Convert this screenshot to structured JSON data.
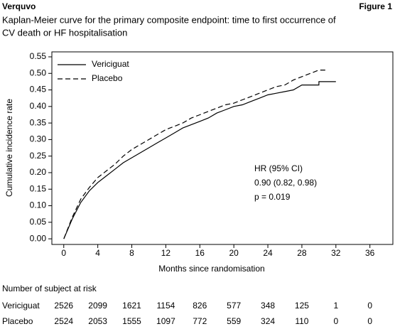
{
  "chart_data": {
    "type": "line",
    "header_left": "Verquvo",
    "header_right": "Figure 1",
    "title": [
      "Kaplan-Meier curve for the primary composite endpoint: time to first occurrence of",
      "CV death or HF hospitalisation"
    ],
    "xlabel": "Months since randomisation",
    "ylabel": "Cumulative incidence rate",
    "xlim": [
      -1.4,
      38.7
    ],
    "ylim": [
      -0.017,
      0.565
    ],
    "xticks": [
      0,
      4,
      8,
      12,
      16,
      20,
      24,
      28,
      32,
      36
    ],
    "yticks": [
      {
        "value": 0,
        "label": "0.00"
      },
      0.05,
      {
        "value": 0.1,
        "label": "0.10"
      },
      0.15,
      {
        "value": 0.2,
        "label": "0.20"
      },
      0.25,
      {
        "value": 0.3,
        "label": "0.30"
      },
      0.35,
      {
        "value": 0.4,
        "label": "0.40"
      },
      0.45,
      {
        "value": 0.5,
        "label": "0.50"
      },
      0.55
    ],
    "grid": false,
    "legend_position": "upper left",
    "series": [
      {
        "name": "Vericiguat",
        "color": "#000000",
        "line_style": "solid",
        "x": [
          0,
          1,
          2,
          3,
          4,
          5,
          6,
          7,
          8,
          9,
          10,
          11,
          12,
          13,
          14,
          15,
          16,
          17,
          18,
          19,
          20,
          21,
          22,
          23,
          24,
          25,
          26,
          27,
          28,
          30,
          30,
          32
        ],
        "values": [
          0,
          0.06,
          0.11,
          0.145,
          0.17,
          0.19,
          0.21,
          0.23,
          0.245,
          0.26,
          0.275,
          0.29,
          0.305,
          0.32,
          0.335,
          0.345,
          0.355,
          0.365,
          0.38,
          0.39,
          0.4,
          0.405,
          0.415,
          0.425,
          0.435,
          0.44,
          0.445,
          0.45,
          0.465,
          0.465,
          0.475,
          0.475
        ]
      },
      {
        "name": "Placebo",
        "color": "#000000",
        "line_style": "dashed",
        "x": [
          0,
          1,
          2,
          3,
          4,
          5,
          6,
          7,
          8,
          9,
          10,
          11,
          12,
          13,
          14,
          15,
          16,
          17,
          18,
          19,
          20,
          21,
          22,
          23,
          24,
          25,
          26,
          27,
          28,
          29,
          30,
          31
        ],
        "values": [
          0,
          0.065,
          0.12,
          0.155,
          0.185,
          0.205,
          0.225,
          0.25,
          0.27,
          0.285,
          0.3,
          0.315,
          0.33,
          0.34,
          0.35,
          0.365,
          0.375,
          0.385,
          0.395,
          0.405,
          0.41,
          0.42,
          0.43,
          0.44,
          0.45,
          0.46,
          0.465,
          0.48,
          0.49,
          0.5,
          0.51,
          0.51
        ]
      }
    ],
    "annotations": [
      "HR (95% CI)",
      "0.90 (0.82, 0.98)",
      "p = 0.019"
    ],
    "risk_table": {
      "title": "Number of subject at risk",
      "rows": [
        {
          "name": "Vericiguat",
          "values": [
            2526,
            2099,
            1621,
            1154,
            826,
            577,
            348,
            125,
            1,
            0
          ]
        },
        {
          "name": "Placebo",
          "values": [
            2524,
            2053,
            1555,
            1097,
            772,
            559,
            324,
            110,
            0,
            0
          ]
        }
      ]
    }
  }
}
